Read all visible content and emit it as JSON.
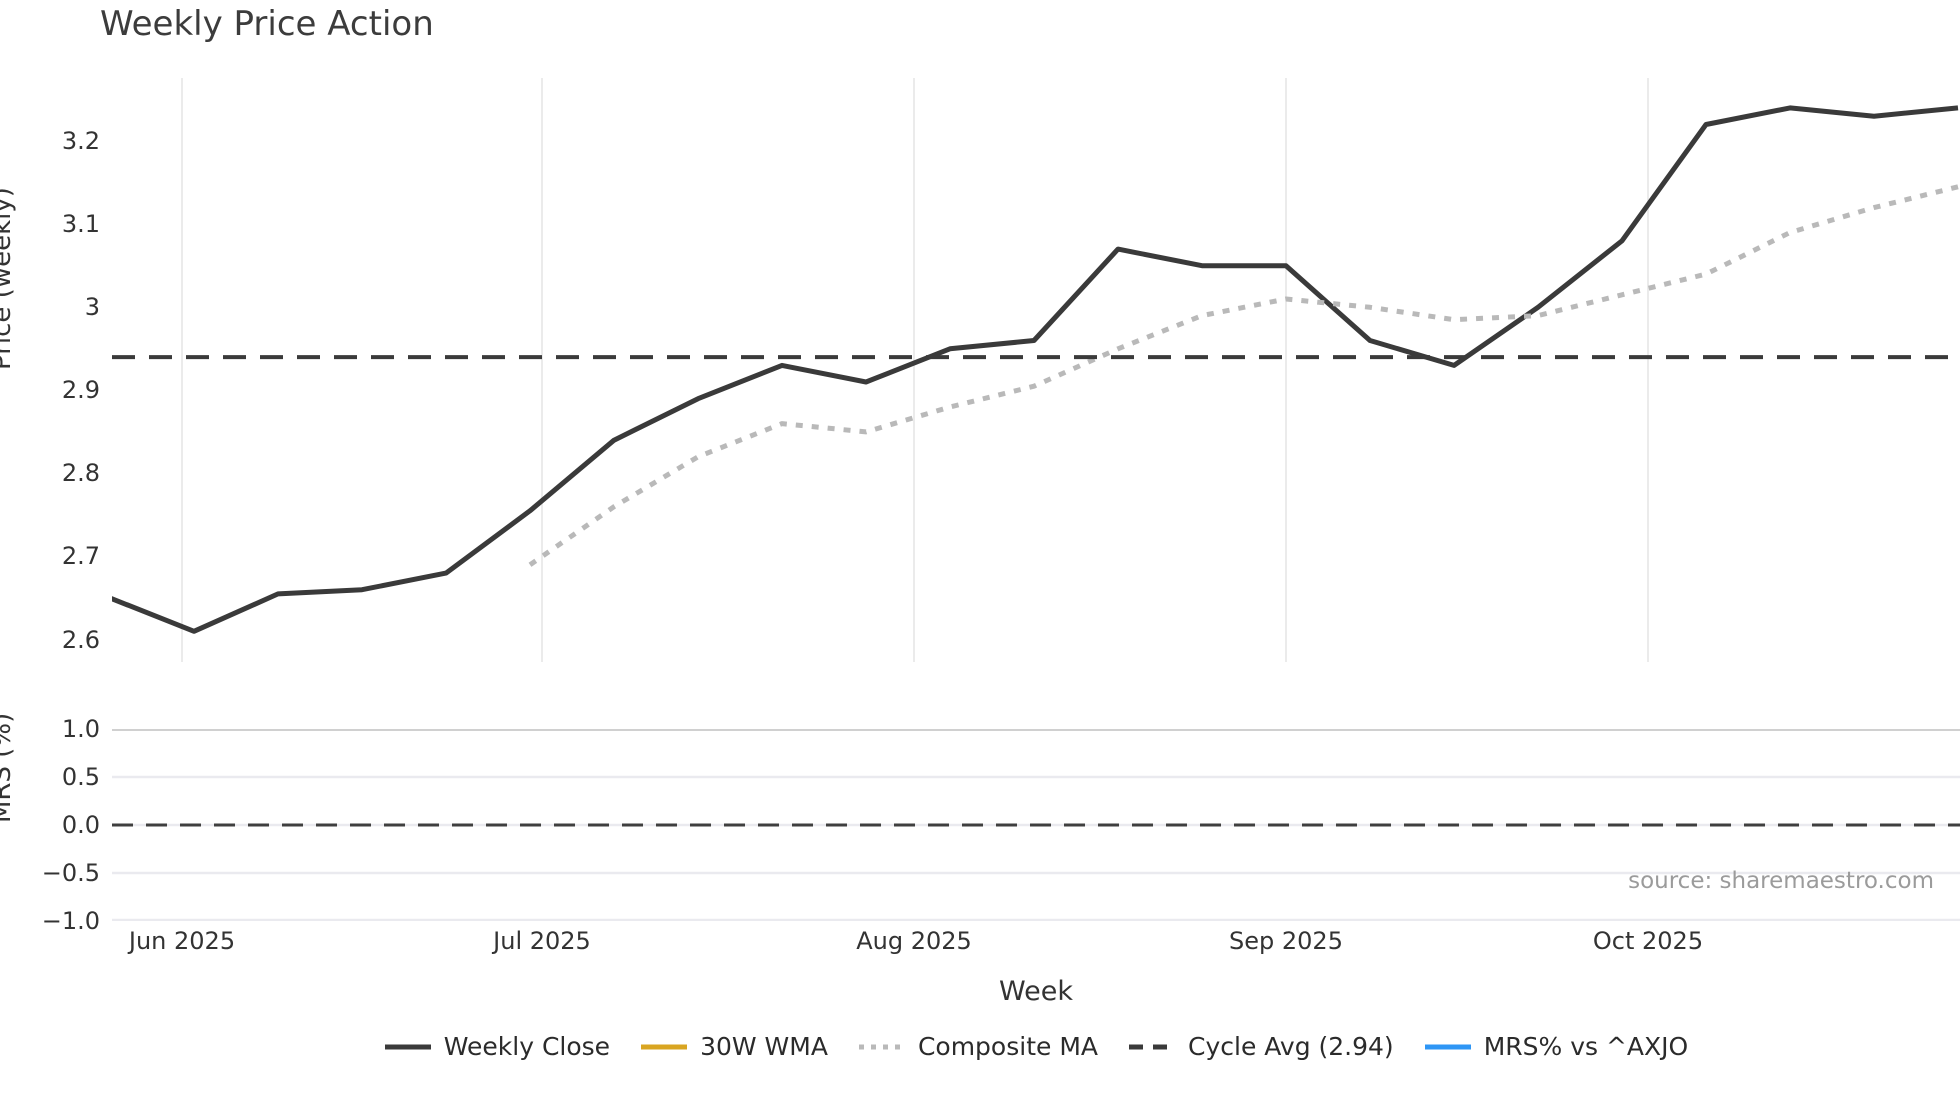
{
  "title": "Weekly Price Action",
  "axes": {
    "price_label": "Price (weekly)",
    "mrs_label": "MRS (%)",
    "week_label": "Week"
  },
  "source_note": "source: sharemaestro.com",
  "chart_data": {
    "type": "line",
    "title": "Weekly Price Action",
    "xlabel": "Week",
    "panels": [
      {
        "ylabel": "Price (weekly)",
        "ylim": [
          2.573,
          3.276
        ],
        "ytick_values": [
          3.2,
          3.1,
          3.0,
          2.9,
          2.8,
          2.7,
          2.6
        ],
        "ytick_labels": [
          "3.2",
          "3.1",
          "3",
          "2.9",
          "2.8",
          "2.7",
          "2.6"
        ],
        "grid": "vertical-months-only"
      },
      {
        "ylabel": "MRS (%)",
        "ylim": [
          -1.0,
          1.0
        ],
        "ytick_values": [
          1.0,
          0.5,
          0.0,
          -0.5,
          -1.0
        ],
        "ytick_labels": [
          "1.0",
          "0.5",
          "0.0",
          "−0.5",
          "−1.0"
        ],
        "grid": "horizontal-only"
      }
    ],
    "x_tick_labels": [
      "Jun 2025",
      "Jul 2025",
      "Aug 2025",
      "Sep 2025",
      "Oct 2025"
    ],
    "week_dates_est": [
      "2025-05-26",
      "2025-06-02",
      "2025-06-09",
      "2025-06-16",
      "2025-06-23",
      "2025-06-30",
      "2025-07-07",
      "2025-07-14",
      "2025-07-21",
      "2025-07-28",
      "2025-08-04",
      "2025-08-11",
      "2025-08-18",
      "2025-08-25",
      "2025-09-01",
      "2025-09-08",
      "2025-09-15",
      "2025-09-22",
      "2025-09-29",
      "2025-10-06",
      "2025-10-13",
      "2025-10-20",
      "2025-10-27"
    ],
    "series": [
      {
        "name": "Weekly Close",
        "style": "solid",
        "color": "#3a3a3a",
        "panel": 0,
        "values": [
          2.65,
          2.61,
          2.655,
          2.66,
          2.68,
          2.755,
          2.84,
          2.89,
          2.93,
          2.91,
          2.95,
          2.96,
          3.07,
          3.05,
          3.05,
          2.96,
          2.93,
          3.0,
          3.08,
          3.22,
          3.24,
          3.23,
          3.24
        ]
      },
      {
        "name": "30W WMA",
        "style": "solid",
        "color": "#d9a521",
        "panel": 0,
        "values": null,
        "note": "legend entry only; no visible curve in the plot"
      },
      {
        "name": "Composite MA",
        "style": "dotted",
        "color": "#b9b9b9",
        "panel": 0,
        "values": [
          null,
          null,
          null,
          null,
          null,
          2.69,
          2.76,
          2.82,
          2.86,
          2.85,
          2.88,
          2.905,
          2.95,
          2.99,
          3.01,
          3.0,
          2.985,
          2.99,
          3.015,
          3.04,
          3.09,
          3.12,
          3.145
        ]
      },
      {
        "name": "Cycle Avg (2.94)",
        "style": "dashed",
        "color": "#3a3a3a",
        "panel": 0,
        "constant": 2.94
      },
      {
        "name": "MRS% vs ^AXJO",
        "style": "solid",
        "color": "#2e96f5",
        "panel": 1,
        "values": null,
        "note": "legend entry only; MRS panel shows only the dashed zero line"
      }
    ],
    "mrs_zero_line": 0.0,
    "legend_position": "bottom-center",
    "colors": {
      "grid_vertical": "#e6e6e6",
      "grid_horizontal": "#eaeaef",
      "grid_top_separator": "#d0d0d0",
      "tick_text": "#333333",
      "source_text": "#9b9b9b"
    }
  }
}
